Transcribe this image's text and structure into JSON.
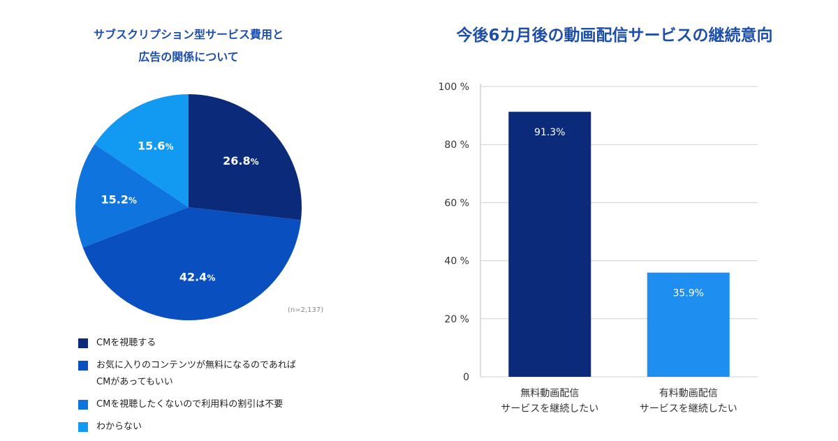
{
  "chart_data": [
    {
      "type": "pie",
      "title_lines": [
        "サブスクリプション型サービス費用と",
        "広告の関係について"
      ],
      "slices": [
        {
          "label": "CMを視聴する",
          "value": 26.8,
          "display": "26.8",
          "color": "#0b2a7a"
        },
        {
          "label": "お気に入りのコンテンツが無料になるのであればCMがあってもいい",
          "value": 42.4,
          "display": "42.4",
          "color": "#0a4fbf"
        },
        {
          "label": "CMを視聴したくないので利用料の割引は不要",
          "value": 15.2,
          "display": "15.2",
          "color": "#0f74de"
        },
        {
          "label": "わからない",
          "value": 15.6,
          "display": "15.6",
          "color": "#129af2"
        }
      ],
      "unit": "%",
      "note": "(n=2,137)"
    },
    {
      "type": "bar",
      "title": "今後6カ月後の動画配信サービスの継続意向",
      "categories": [
        [
          "無料動画配信",
          "サービスを継続したい"
        ],
        [
          "有料動画配信",
          "サービスを継続したい"
        ]
      ],
      "values": [
        91.3,
        35.9
      ],
      "value_labels": [
        "91.3%",
        "35.9%"
      ],
      "colors": [
        "#0b2a7a",
        "#1f8ef1"
      ],
      "ylim": [
        0,
        100
      ],
      "yticks": [
        0,
        20,
        40,
        60,
        80,
        100
      ],
      "ytick_labels": [
        "0",
        "20 %",
        "40 %",
        "60 %",
        "80 %",
        "100 %"
      ],
      "grid": true
    }
  ]
}
